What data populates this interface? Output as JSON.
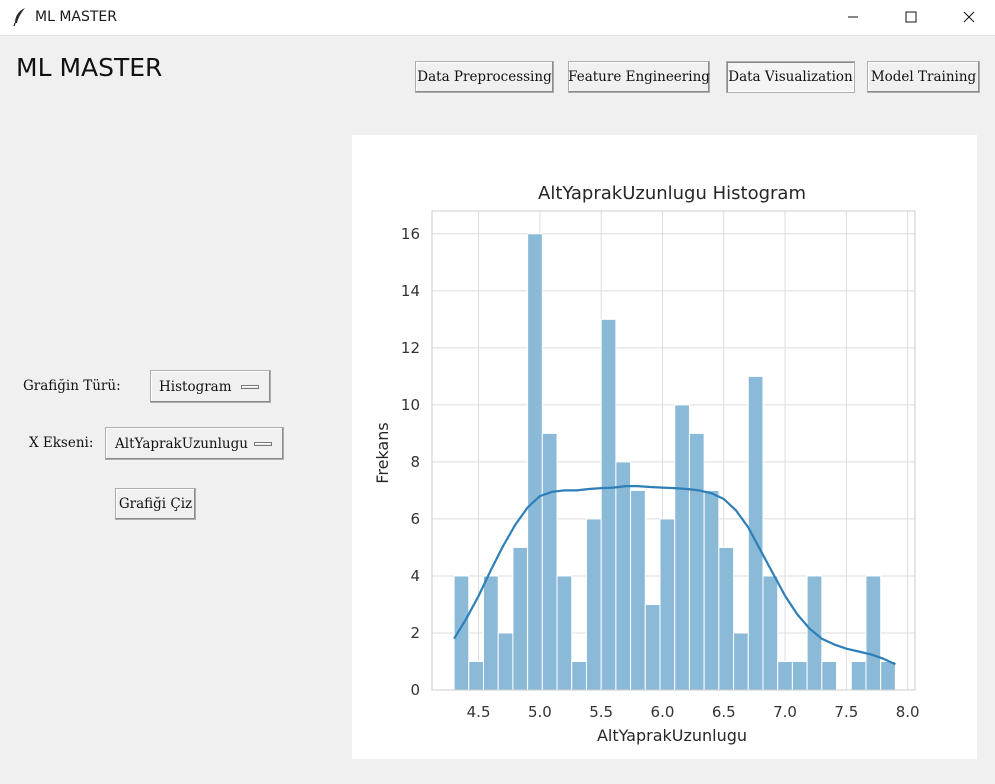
{
  "window": {
    "title": "ML MASTER",
    "icon": "feather-icon"
  },
  "app": {
    "heading": "ML MASTER"
  },
  "nav": {
    "buttons": [
      {
        "label": "Data Preprocessing",
        "active": false
      },
      {
        "label": "Feature Engineering",
        "active": false
      },
      {
        "label": "Data Visualization",
        "active": true
      },
      {
        "label": "Model Training",
        "active": false
      }
    ]
  },
  "controls": {
    "chart_type_label": "Grafiğin Türü:",
    "chart_type_value": "Histogram",
    "x_axis_label": "X Ekseni:",
    "x_axis_value": "AltYaprakUzunlugu",
    "plot_button": "Grafiği Çiz"
  },
  "chart_data": {
    "type": "bar",
    "title": "AltYaprakUzunlugu Histogram",
    "xlabel": "AltYaprakUzunlugu",
    "ylabel": "Frekans",
    "xlim": [
      4.12,
      8.06
    ],
    "ylim": [
      0,
      16.8
    ],
    "xticks": [
      "4.5",
      "5.0",
      "5.5",
      "6.0",
      "6.5",
      "7.0",
      "7.5",
      "8.0"
    ],
    "yticks": [
      "0",
      "2",
      "4",
      "6",
      "8",
      "10",
      "12",
      "14",
      "16"
    ],
    "grid": true,
    "bar_color": "#8bbad9",
    "kde_color": "#2e7eb8",
    "bins": [
      {
        "start": 4.3,
        "end": 4.42,
        "count": 4
      },
      {
        "start": 4.42,
        "end": 4.54,
        "count": 1
      },
      {
        "start": 4.54,
        "end": 4.66,
        "count": 4
      },
      {
        "start": 4.66,
        "end": 4.78,
        "count": 2
      },
      {
        "start": 4.78,
        "end": 4.9,
        "count": 5
      },
      {
        "start": 4.9,
        "end": 5.02,
        "count": 16
      },
      {
        "start": 5.02,
        "end": 5.14,
        "count": 9
      },
      {
        "start": 5.14,
        "end": 5.26,
        "count": 4
      },
      {
        "start": 5.26,
        "end": 5.38,
        "count": 1
      },
      {
        "start": 5.38,
        "end": 5.5,
        "count": 6
      },
      {
        "start": 5.5,
        "end": 5.62,
        "count": 13
      },
      {
        "start": 5.62,
        "end": 5.74,
        "count": 8
      },
      {
        "start": 5.74,
        "end": 5.86,
        "count": 7
      },
      {
        "start": 5.86,
        "end": 5.98,
        "count": 3
      },
      {
        "start": 5.98,
        "end": 6.1,
        "count": 6
      },
      {
        "start": 6.1,
        "end": 6.22,
        "count": 10
      },
      {
        "start": 6.22,
        "end": 6.34,
        "count": 9
      },
      {
        "start": 6.34,
        "end": 6.46,
        "count": 7
      },
      {
        "start": 6.46,
        "end": 6.58,
        "count": 5
      },
      {
        "start": 6.58,
        "end": 6.7,
        "count": 2
      },
      {
        "start": 6.7,
        "end": 6.82,
        "count": 11
      },
      {
        "start": 6.82,
        "end": 6.94,
        "count": 4
      },
      {
        "start": 6.94,
        "end": 7.06,
        "count": 1
      },
      {
        "start": 7.06,
        "end": 7.18,
        "count": 1
      },
      {
        "start": 7.18,
        "end": 7.3,
        "count": 4
      },
      {
        "start": 7.3,
        "end": 7.42,
        "count": 1
      },
      {
        "start": 7.42,
        "end": 7.54,
        "count": 0
      },
      {
        "start": 7.54,
        "end": 7.66,
        "count": 1
      },
      {
        "start": 7.66,
        "end": 7.78,
        "count": 4
      },
      {
        "start": 7.78,
        "end": 7.9,
        "count": 1
      }
    ],
    "kde": {
      "x": [
        4.3,
        4.4,
        4.5,
        4.6,
        4.7,
        4.8,
        4.9,
        5.0,
        5.1,
        5.2,
        5.3,
        5.4,
        5.5,
        5.6,
        5.7,
        5.8,
        5.9,
        6.0,
        6.1,
        6.2,
        6.3,
        6.4,
        6.5,
        6.6,
        6.7,
        6.8,
        6.9,
        7.0,
        7.1,
        7.2,
        7.3,
        7.4,
        7.5,
        7.6,
        7.7,
        7.8,
        7.9
      ],
      "y": [
        1.8,
        2.5,
        3.3,
        4.2,
        5.05,
        5.8,
        6.4,
        6.8,
        6.95,
        7.0,
        7.0,
        7.05,
        7.08,
        7.1,
        7.15,
        7.15,
        7.12,
        7.1,
        7.08,
        7.05,
        7.0,
        6.9,
        6.7,
        6.3,
        5.7,
        4.9,
        4.1,
        3.3,
        2.65,
        2.15,
        1.8,
        1.6,
        1.45,
        1.35,
        1.25,
        1.1,
        0.9
      ]
    }
  }
}
